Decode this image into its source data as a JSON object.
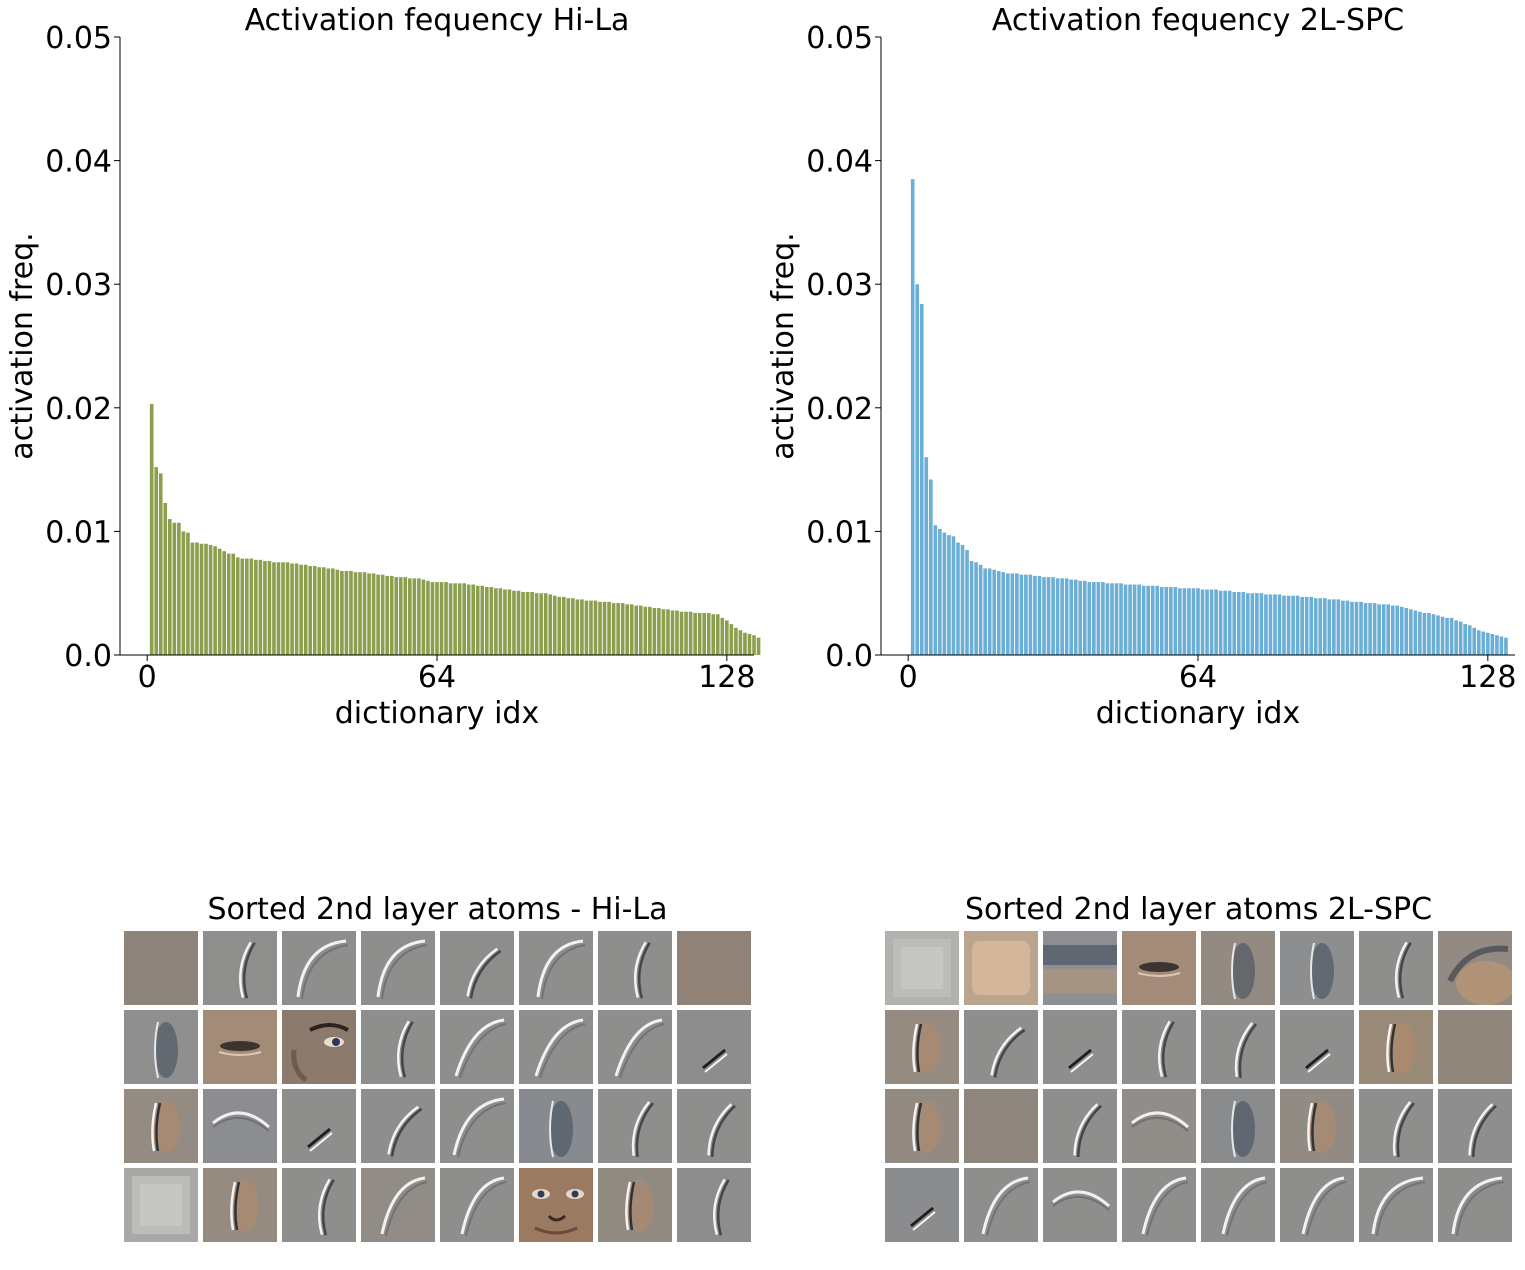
{
  "charts_title_note": "",
  "chart_data": [
    {
      "type": "bar",
      "title": "Activation fequency Hi-La",
      "xlabel": "dictionary idx",
      "ylabel": "activation freq.",
      "ylim": [
        0,
        0.05
      ],
      "yticks": [
        "0.0",
        "0.01",
        "0.02",
        "0.03",
        "0.04",
        "0.05"
      ],
      "xticks": [
        "0",
        "64",
        "128"
      ],
      "xlim": [
        -6,
        134
      ],
      "color": "#8c9f4e",
      "grid": false,
      "values": [
        0.0203,
        0.0152,
        0.0147,
        0.0123,
        0.011,
        0.0107,
        0.0107,
        0.01,
        0.0099,
        0.0091,
        0.0091,
        0.009,
        0.009,
        0.0089,
        0.0088,
        0.0086,
        0.0084,
        0.0082,
        0.0082,
        0.0079,
        0.0078,
        0.0078,
        0.0078,
        0.0077,
        0.0077,
        0.0076,
        0.0076,
        0.0075,
        0.0075,
        0.0075,
        0.0075,
        0.0074,
        0.0074,
        0.0073,
        0.0073,
        0.0072,
        0.0072,
        0.0071,
        0.0071,
        0.007,
        0.007,
        0.0069,
        0.0068,
        0.0068,
        0.0068,
        0.0067,
        0.0067,
        0.0067,
        0.0066,
        0.0066,
        0.0065,
        0.0065,
        0.0064,
        0.0064,
        0.0063,
        0.0063,
        0.0063,
        0.0062,
        0.0062,
        0.0062,
        0.0061,
        0.006,
        0.0059,
        0.0059,
        0.0059,
        0.0059,
        0.0058,
        0.0058,
        0.0058,
        0.0058,
        0.0057,
        0.0057,
        0.0056,
        0.0056,
        0.0055,
        0.0055,
        0.0054,
        0.0054,
        0.0053,
        0.0053,
        0.0052,
        0.0052,
        0.0051,
        0.0051,
        0.0051,
        0.005,
        0.005,
        0.005,
        0.0049,
        0.0048,
        0.0047,
        0.0047,
        0.0046,
        0.0046,
        0.0045,
        0.0045,
        0.0044,
        0.0044,
        0.0044,
        0.0043,
        0.0043,
        0.0043,
        0.0042,
        0.0042,
        0.0042,
        0.0041,
        0.0041,
        0.004,
        0.004,
        0.0039,
        0.0039,
        0.0038,
        0.0038,
        0.0037,
        0.0037,
        0.0036,
        0.0036,
        0.0035,
        0.0035,
        0.0035,
        0.0034,
        0.0034,
        0.0034,
        0.0034,
        0.0033,
        0.0033,
        0.003,
        0.0028,
        0.0025,
        0.0022,
        0.002,
        0.0018,
        0.0017,
        0.0016,
        0.0014
      ]
    },
    {
      "type": "bar",
      "title": "Activation fequency 2L-SPC",
      "xlabel": "dictionary idx",
      "ylabel": "activation freq.",
      "ylim": [
        0,
        0.05
      ],
      "yticks": [
        "0.0",
        "0.01",
        "0.02",
        "0.03",
        "0.04",
        "0.05"
      ],
      "xticks": [
        "0",
        "64",
        "128"
      ],
      "xlim": [
        -6,
        134
      ],
      "color": "#6baed6",
      "grid": false,
      "values": [
        0.0385,
        0.03,
        0.0284,
        0.016,
        0.0142,
        0.0105,
        0.0102,
        0.0099,
        0.0097,
        0.0096,
        0.0091,
        0.0089,
        0.0085,
        0.0076,
        0.0075,
        0.0073,
        0.007,
        0.007,
        0.0069,
        0.0068,
        0.0067,
        0.0066,
        0.0066,
        0.0066,
        0.0065,
        0.0065,
        0.0065,
        0.0064,
        0.0064,
        0.0063,
        0.0063,
        0.0063,
        0.0062,
        0.0062,
        0.0062,
        0.0061,
        0.0061,
        0.006,
        0.006,
        0.0059,
        0.0059,
        0.0059,
        0.0059,
        0.0058,
        0.0058,
        0.0058,
        0.0058,
        0.0057,
        0.0057,
        0.0057,
        0.0057,
        0.0056,
        0.0056,
        0.0056,
        0.0056,
        0.0055,
        0.0055,
        0.0055,
        0.0055,
        0.0054,
        0.0054,
        0.0054,
        0.0054,
        0.0054,
        0.0053,
        0.0053,
        0.0053,
        0.0053,
        0.0052,
        0.0052,
        0.0052,
        0.0051,
        0.0051,
        0.0051,
        0.005,
        0.005,
        0.005,
        0.005,
        0.0049,
        0.0049,
        0.0049,
        0.0049,
        0.0048,
        0.0048,
        0.0048,
        0.0048,
        0.0047,
        0.0047,
        0.0047,
        0.0046,
        0.0046,
        0.0046,
        0.0045,
        0.0045,
        0.0045,
        0.0044,
        0.0044,
        0.0043,
        0.0043,
        0.0043,
        0.0042,
        0.0042,
        0.0042,
        0.0041,
        0.0041,
        0.0041,
        0.004,
        0.004,
        0.0039,
        0.0038,
        0.0037,
        0.0036,
        0.0035,
        0.0034,
        0.0034,
        0.0033,
        0.0032,
        0.0031,
        0.003,
        0.003,
        0.0028,
        0.0027,
        0.0025,
        0.0024,
        0.0022,
        0.002,
        0.0019,
        0.0018,
        0.0017,
        0.0016,
        0.0015,
        0.0014
      ]
    }
  ],
  "atoms": [
    {
      "title": "Sorted 2nd layer atoms - Hi-La",
      "grid_size": "8x4",
      "tiles": [
        {
          "kind": "noise",
          "tint": "#928a80"
        },
        {
          "kind": "curve",
          "tint": "#8f8f8d"
        },
        {
          "kind": "arc",
          "tint": "#8e8e8c"
        },
        {
          "kind": "arc",
          "tint": "#8e8e8c"
        },
        {
          "kind": "curve",
          "tint": "#8d8d8c"
        },
        {
          "kind": "arc",
          "tint": "#8e8e8c"
        },
        {
          "kind": "curve",
          "tint": "#8e8e8d"
        },
        {
          "kind": "noise",
          "tint": "#95877a"
        },
        {
          "kind": "blob-dark",
          "tint": "#8f8f8f"
        },
        {
          "kind": "eye",
          "tint": "#a28c78"
        },
        {
          "kind": "face-eye",
          "tint": "#9a8a7c"
        },
        {
          "kind": "curve",
          "tint": "#8e8e8d"
        },
        {
          "kind": "arc",
          "tint": "#8e8e8c"
        },
        {
          "kind": "arc",
          "tint": "#8e8e8c"
        },
        {
          "kind": "arc",
          "tint": "#8e8e8c"
        },
        {
          "kind": "spot",
          "tint": "#8d8d8e"
        },
        {
          "kind": "curve-orange",
          "tint": "#948b82"
        },
        {
          "kind": "arc-top",
          "tint": "#8c8d90"
        },
        {
          "kind": "spot",
          "tint": "#8e8e8c"
        },
        {
          "kind": "curve",
          "tint": "#8e8e8e"
        },
        {
          "kind": "arc",
          "tint": "#8e8e8c"
        },
        {
          "kind": "blob-dark",
          "tint": "#878a8e"
        },
        {
          "kind": "curve",
          "tint": "#8e8e8c"
        },
        {
          "kind": "curve",
          "tint": "#8e8e8c"
        },
        {
          "kind": "square-light",
          "tint": "#a9a8a6"
        },
        {
          "kind": "curve-orange",
          "tint": "#958b80"
        },
        {
          "kind": "curve",
          "tint": "#8e8e8c"
        },
        {
          "kind": "arc",
          "tint": "#928c86"
        },
        {
          "kind": "arc",
          "tint": "#8e8e8c"
        },
        {
          "kind": "face",
          "tint": "#9c806a"
        },
        {
          "kind": "curve-orange",
          "tint": "#918a83"
        },
        {
          "kind": "curve",
          "tint": "#8d8d8d"
        }
      ]
    },
    {
      "title": "Sorted 2nd layer atoms 2L-SPC",
      "grid_size": "8x4",
      "tiles": [
        {
          "kind": "square-light",
          "tint": "#b2b1ae"
        },
        {
          "kind": "skin",
          "tint": "#bca58e"
        },
        {
          "kind": "band-dark",
          "tint": "#8d8f93"
        },
        {
          "kind": "eye",
          "tint": "#a08d7d"
        },
        {
          "kind": "blob-dark",
          "tint": "#938a82"
        },
        {
          "kind": "blob-dark",
          "tint": "#8c8e90"
        },
        {
          "kind": "curve",
          "tint": "#8e8e8c"
        },
        {
          "kind": "arc-orange",
          "tint": "#928a83"
        },
        {
          "kind": "curve-orange",
          "tint": "#958b80"
        },
        {
          "kind": "curve",
          "tint": "#8e8e8c"
        },
        {
          "kind": "spot",
          "tint": "#8e8e8c"
        },
        {
          "kind": "curve",
          "tint": "#8e8e8c"
        },
        {
          "kind": "curve",
          "tint": "#8e8e8d"
        },
        {
          "kind": "spot",
          "tint": "#8e8e8c"
        },
        {
          "kind": "curve-orange",
          "tint": "#9a8a78"
        },
        {
          "kind": "noise",
          "tint": "#958a7e"
        },
        {
          "kind": "curve-orange",
          "tint": "#938b82"
        },
        {
          "kind": "noise",
          "tint": "#938a80"
        },
        {
          "kind": "curve",
          "tint": "#8e8e8c"
        },
        {
          "kind": "arc-top",
          "tint": "#918d88"
        },
        {
          "kind": "blob-dark",
          "tint": "#8a8b8d"
        },
        {
          "kind": "curve-orange",
          "tint": "#928b84"
        },
        {
          "kind": "curve",
          "tint": "#8e8e8c"
        },
        {
          "kind": "curve",
          "tint": "#8e8e8e"
        },
        {
          "kind": "spot",
          "tint": "#8b8c8e"
        },
        {
          "kind": "arc",
          "tint": "#8e8e8c"
        },
        {
          "kind": "arc-top",
          "tint": "#8e8e8c"
        },
        {
          "kind": "arc",
          "tint": "#8e8e8c"
        },
        {
          "kind": "arc",
          "tint": "#8e8e8c"
        },
        {
          "kind": "arc",
          "tint": "#8e8e8c"
        },
        {
          "kind": "arc",
          "tint": "#8e8e8c"
        },
        {
          "kind": "arc",
          "tint": "#8e8e8c"
        }
      ]
    }
  ]
}
